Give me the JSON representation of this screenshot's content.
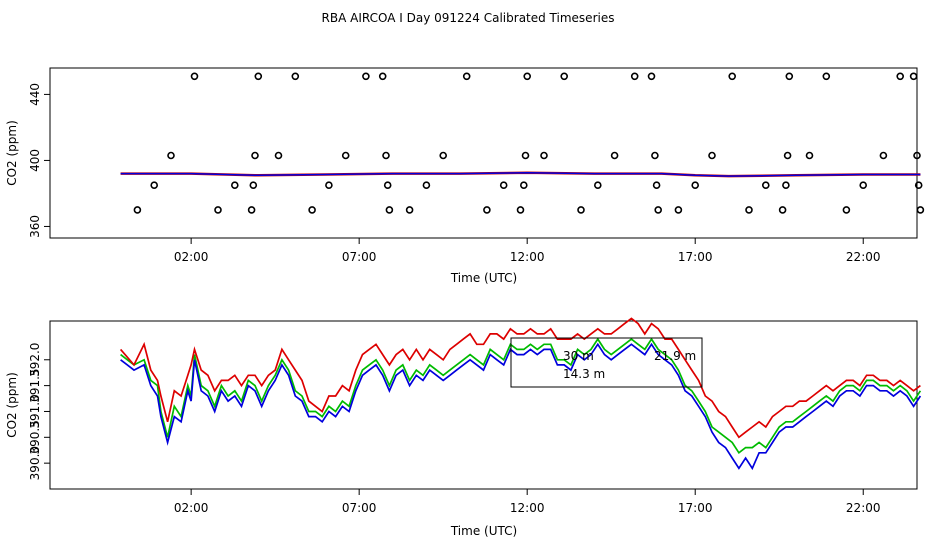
{
  "chart_data": [
    {
      "type": "scatter",
      "title": "RBA AIRCOA I  Day 091224  Calibrated Timeseries",
      "xlabel": "Time (UTC)",
      "ylabel": "CO2 (ppm)",
      "xlim": [
        -2.2,
        23.6
      ],
      "ylim": [
        353,
        456
      ],
      "x_ticks": [
        2,
        7,
        12,
        17,
        22
      ],
      "x_tick_labels": [
        "02:00",
        "07:00",
        "12:00",
        "17:00",
        "22:00"
      ],
      "y_ticks": [
        360,
        400,
        440
      ],
      "y_tick_labels": [
        "360",
        "400",
        "440"
      ],
      "line_color": "#0000dd",
      "line_accent_color": "#cc0000",
      "point_color": "#000000",
      "line_series": {
        "name": "CO2",
        "x": [
          -0.1,
          2,
          4,
          6,
          8,
          10,
          12,
          14,
          16,
          17,
          18,
          20,
          22,
          23.7
        ],
        "values": [
          392,
          392,
          391,
          391.5,
          392,
          392,
          392.5,
          392,
          392,
          391,
          390.5,
          391,
          391.5,
          391.5
        ]
      },
      "points": {
        "x": [
          0.4,
          0.9,
          1.4,
          2.1,
          2.8,
          3.3,
          3.8,
          3.85,
          3.9,
          4.0,
          4.6,
          5.1,
          5.6,
          6.1,
          6.6,
          7.2,
          7.7,
          7.8,
          7.85,
          7.9,
          8.5,
          9.0,
          9.5,
          10.2,
          10.8,
          11.3,
          11.8,
          11.9,
          11.95,
          12.0,
          12.5,
          13.1,
          13.6,
          14.1,
          14.6,
          15.2,
          15.7,
          15.8,
          15.85,
          15.9,
          16.5,
          17.0,
          17.5,
          18.1,
          18.6,
          19.1,
          19.6,
          19.7,
          19.75,
          19.8,
          20.4,
          20.9,
          21.5,
          22.0,
          22.6,
          23.1,
          23.5,
          23.6,
          23.65,
          23.7
        ],
        "values": [
          370,
          385,
          403,
          451,
          370,
          385,
          370,
          385,
          403,
          451,
          403,
          451,
          370,
          385,
          403,
          451,
          451,
          403,
          385,
          370,
          370,
          385,
          403,
          451,
          370,
          385,
          370,
          385,
          403,
          451,
          403,
          451,
          370,
          385,
          403,
          451,
          451,
          403,
          385,
          370,
          370,
          385,
          403,
          451,
          370,
          385,
          370,
          385,
          403,
          451,
          403,
          451,
          370,
          385,
          403,
          451,
          451,
          403,
          385,
          370
        ]
      }
    },
    {
      "type": "line",
      "xlabel": "Time (UTC)",
      "ylabel": "CO2 (ppm)",
      "xlim": [
        -2.2,
        23.6
      ],
      "ylim": [
        389.5,
        392.75
      ],
      "x_ticks": [
        2,
        7,
        12,
        17,
        22
      ],
      "x_tick_labels": [
        "02:00",
        "07:00",
        "12:00",
        "17:00",
        "22:00"
      ],
      "y_ticks": [
        390.0,
        391.0,
        392.0
      ],
      "y_tick_labels": [
        "390.0",
        "391.0",
        "392.0"
      ],
      "minor_y_ticks": [
        390.5,
        391.5
      ],
      "minor_y_tick_labels": [
        "390.5",
        "391.5"
      ],
      "legend": [
        "30 m",
        "21.9 m",
        "14.3 m"
      ],
      "x": [
        -0.1,
        0.3,
        0.6,
        0.8,
        1.0,
        1.1,
        1.3,
        1.5,
        1.7,
        1.9,
        2.0,
        2.1,
        2.3,
        2.5,
        2.7,
        2.9,
        3.1,
        3.3,
        3.5,
        3.7,
        3.9,
        4.1,
        4.3,
        4.5,
        4.7,
        4.9,
        5.1,
        5.3,
        5.5,
        5.7,
        5.9,
        6.1,
        6.3,
        6.5,
        6.7,
        6.9,
        7.1,
        7.3,
        7.5,
        7.7,
        7.9,
        8.1,
        8.3,
        8.5,
        8.7,
        8.9,
        9.1,
        9.3,
        9.5,
        9.7,
        9.9,
        10.1,
        10.3,
        10.5,
        10.7,
        10.9,
        11.1,
        11.3,
        11.5,
        11.7,
        11.9,
        12.1,
        12.3,
        12.5,
        12.7,
        12.9,
        13.1,
        13.3,
        13.5,
        13.7,
        13.9,
        14.1,
        14.3,
        14.5,
        14.7,
        14.9,
        15.1,
        15.3,
        15.5,
        15.7,
        15.9,
        16.1,
        16.3,
        16.5,
        16.7,
        16.9,
        17.1,
        17.3,
        17.5,
        17.7,
        17.9,
        18.1,
        18.3,
        18.5,
        18.7,
        18.9,
        19.1,
        19.3,
        19.5,
        19.7,
        19.9,
        20.1,
        20.3,
        20.5,
        20.7,
        20.9,
        21.1,
        21.3,
        21.5,
        21.7,
        21.9,
        22.1,
        22.3,
        22.5,
        22.7,
        22.9,
        23.1,
        23.3,
        23.5,
        23.7
      ],
      "series": [
        {
          "name": "30 m",
          "color": "#00bb00",
          "values": [
            392.1,
            391.9,
            392.0,
            391.6,
            391.5,
            391.0,
            390.5,
            391.1,
            390.9,
            391.5,
            391.3,
            392.1,
            391.5,
            391.4,
            391.1,
            391.5,
            391.3,
            391.4,
            391.2,
            391.6,
            391.5,
            391.2,
            391.5,
            391.7,
            392.0,
            391.8,
            391.4,
            391.3,
            391.0,
            391.0,
            390.9,
            391.1,
            391.0,
            391.2,
            391.1,
            391.5,
            391.8,
            391.9,
            392.0,
            391.8,
            391.5,
            391.8,
            391.9,
            391.6,
            391.8,
            391.7,
            391.9,
            391.8,
            391.7,
            391.8,
            391.9,
            392.0,
            392.1,
            392.0,
            391.9,
            392.2,
            392.1,
            392.0,
            392.3,
            392.2,
            392.2,
            392.3,
            392.2,
            392.3,
            392.3,
            392.0,
            392.0,
            391.9,
            392.2,
            392.1,
            392.2,
            392.4,
            392.2,
            392.1,
            392.2,
            392.3,
            392.4,
            392.3,
            392.2,
            392.4,
            392.2,
            392.1,
            392.0,
            391.8,
            391.5,
            391.4,
            391.2,
            391.0,
            390.7,
            390.6,
            390.5,
            390.4,
            390.2,
            390.3,
            390.3,
            390.4,
            390.3,
            390.5,
            390.7,
            390.8,
            390.8,
            390.9,
            391.0,
            391.1,
            391.2,
            391.3,
            391.2,
            391.4,
            391.5,
            391.5,
            391.4,
            391.6,
            391.6,
            391.5,
            391.5,
            391.4,
            391.5,
            391.4,
            391.2,
            391.4
          ]
        },
        {
          "name": "21.9 m",
          "color": "#dd0000",
          "values": [
            392.2,
            391.9,
            392.3,
            391.8,
            391.6,
            391.3,
            390.8,
            391.4,
            391.3,
            391.7,
            391.9,
            392.2,
            391.8,
            391.7,
            391.4,
            391.6,
            391.6,
            391.7,
            391.5,
            391.7,
            391.7,
            391.5,
            391.7,
            391.8,
            392.2,
            392.0,
            391.8,
            391.6,
            391.2,
            391.1,
            391.0,
            391.3,
            391.3,
            391.5,
            391.4,
            391.8,
            392.1,
            392.2,
            392.3,
            392.1,
            391.9,
            392.1,
            392.2,
            392.0,
            392.2,
            392.0,
            392.2,
            392.1,
            392.0,
            392.2,
            392.3,
            392.4,
            392.5,
            392.3,
            392.3,
            392.5,
            392.5,
            392.4,
            392.6,
            392.5,
            392.5,
            392.6,
            392.5,
            392.5,
            392.6,
            392.4,
            392.4,
            392.4,
            392.5,
            392.4,
            392.5,
            392.6,
            392.5,
            392.5,
            392.6,
            392.7,
            392.8,
            392.7,
            392.5,
            392.7,
            392.6,
            392.4,
            392.4,
            392.2,
            392.0,
            391.8,
            391.6,
            391.3,
            391.2,
            391.0,
            390.9,
            390.7,
            390.5,
            390.6,
            390.7,
            390.8,
            390.7,
            390.9,
            391.0,
            391.1,
            391.1,
            391.2,
            391.2,
            391.3,
            391.4,
            391.5,
            391.4,
            391.5,
            391.6,
            391.6,
            391.5,
            391.7,
            391.7,
            391.6,
            391.6,
            391.5,
            391.6,
            391.5,
            391.4,
            391.5
          ]
        },
        {
          "name": "14.3 m",
          "color": "#0000dd",
          "values": [
            392.0,
            391.8,
            391.9,
            391.5,
            391.3,
            390.9,
            390.4,
            390.9,
            390.8,
            391.4,
            391.2,
            392.0,
            391.4,
            391.3,
            391.0,
            391.4,
            391.2,
            391.3,
            391.1,
            391.5,
            391.4,
            391.1,
            391.4,
            391.6,
            391.9,
            391.7,
            391.3,
            391.2,
            390.9,
            390.9,
            390.8,
            391.0,
            390.9,
            391.1,
            391.0,
            391.4,
            391.7,
            391.8,
            391.9,
            391.7,
            391.4,
            391.7,
            391.8,
            391.5,
            391.7,
            391.6,
            391.8,
            391.7,
            391.6,
            391.7,
            391.8,
            391.9,
            392.0,
            391.9,
            391.8,
            392.1,
            392.0,
            391.9,
            392.2,
            392.1,
            392.1,
            392.2,
            392.1,
            392.2,
            392.2,
            391.9,
            391.9,
            391.8,
            392.1,
            392.0,
            392.1,
            392.3,
            392.1,
            392.0,
            392.1,
            392.2,
            392.3,
            392.2,
            392.1,
            392.3,
            392.1,
            392.0,
            391.9,
            391.7,
            391.4,
            391.3,
            391.1,
            390.9,
            390.6,
            390.4,
            390.3,
            390.1,
            389.9,
            390.1,
            389.9,
            390.2,
            390.2,
            390.4,
            390.6,
            390.7,
            390.7,
            390.8,
            390.9,
            391.0,
            391.1,
            391.2,
            391.1,
            391.3,
            391.4,
            391.4,
            391.3,
            391.5,
            391.5,
            391.4,
            391.4,
            391.3,
            391.4,
            391.3,
            391.1,
            391.3
          ]
        }
      ]
    }
  ]
}
